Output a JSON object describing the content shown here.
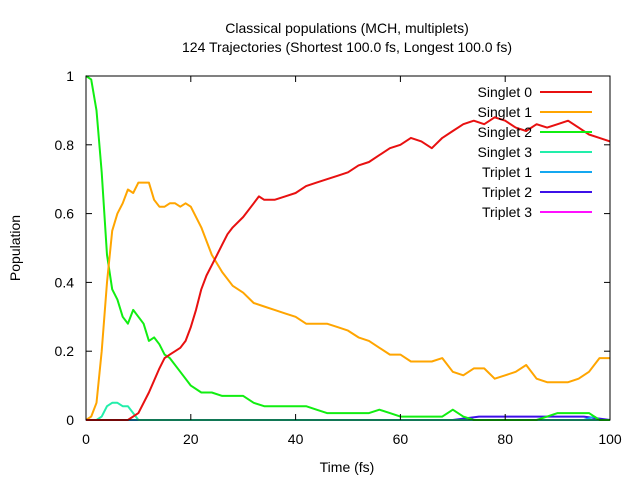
{
  "chart_data": {
    "type": "line",
    "title": "Classical populations (MCH, multiplets)",
    "subtitle": "124 Trajectories (Shortest 100.0 fs, Longest 100.0 fs)",
    "xlabel": "Time (fs)",
    "ylabel": "Population",
    "xlim": [
      0,
      100
    ],
    "ylim": [
      0,
      1
    ],
    "xticks": [
      "0",
      "20",
      "40",
      "60",
      "80",
      "100"
    ],
    "yticks": [
      "0",
      "0.2",
      "0.4",
      "0.6",
      "0.8",
      "1"
    ],
    "grid": false,
    "legend_position": "top-right",
    "series": [
      {
        "name": "Singlet 0",
        "color": "#e81010",
        "x": [
          0,
          5,
          8,
          10,
          12,
          14,
          15,
          16,
          17,
          18,
          19,
          20,
          21,
          22,
          23,
          24,
          25,
          26,
          27,
          28,
          30,
          32,
          33,
          34,
          36,
          38,
          40,
          42,
          44,
          46,
          48,
          50,
          52,
          54,
          56,
          58,
          60,
          62,
          64,
          66,
          68,
          70,
          72,
          74,
          76,
          78,
          80,
          82,
          84,
          86,
          88,
          90,
          92,
          94,
          96,
          98,
          100
        ],
        "values": [
          0,
          0,
          0,
          0.02,
          0.08,
          0.15,
          0.18,
          0.19,
          0.2,
          0.21,
          0.23,
          0.27,
          0.32,
          0.38,
          0.42,
          0.45,
          0.48,
          0.51,
          0.54,
          0.56,
          0.59,
          0.63,
          0.65,
          0.64,
          0.64,
          0.65,
          0.66,
          0.68,
          0.69,
          0.7,
          0.71,
          0.72,
          0.74,
          0.75,
          0.77,
          0.79,
          0.8,
          0.82,
          0.81,
          0.79,
          0.82,
          0.84,
          0.86,
          0.87,
          0.86,
          0.88,
          0.87,
          0.85,
          0.84,
          0.86,
          0.85,
          0.86,
          0.87,
          0.85,
          0.83,
          0.82,
          0.81
        ]
      },
      {
        "name": "Singlet 1",
        "color": "#ffa500",
        "x": [
          0,
          1,
          2,
          3,
          4,
          5,
          6,
          7,
          8,
          9,
          10,
          11,
          12,
          13,
          14,
          15,
          16,
          17,
          18,
          19,
          20,
          22,
          24,
          26,
          28,
          30,
          32,
          34,
          36,
          38,
          40,
          42,
          44,
          46,
          48,
          50,
          52,
          54,
          56,
          58,
          60,
          62,
          64,
          66,
          68,
          70,
          72,
          74,
          76,
          78,
          80,
          82,
          84,
          86,
          88,
          90,
          92,
          94,
          96,
          98,
          100
        ],
        "values": [
          0,
          0.01,
          0.05,
          0.2,
          0.4,
          0.55,
          0.6,
          0.63,
          0.67,
          0.66,
          0.69,
          0.69,
          0.69,
          0.64,
          0.62,
          0.62,
          0.63,
          0.63,
          0.62,
          0.63,
          0.62,
          0.56,
          0.48,
          0.43,
          0.39,
          0.37,
          0.34,
          0.33,
          0.32,
          0.31,
          0.3,
          0.28,
          0.28,
          0.28,
          0.27,
          0.26,
          0.24,
          0.23,
          0.21,
          0.19,
          0.19,
          0.17,
          0.17,
          0.17,
          0.18,
          0.14,
          0.13,
          0.15,
          0.15,
          0.12,
          0.13,
          0.14,
          0.16,
          0.12,
          0.11,
          0.11,
          0.11,
          0.12,
          0.14,
          0.18,
          0.18
        ]
      },
      {
        "name": "Singlet 2",
        "color": "#11ee11",
        "x": [
          0,
          1,
          2,
          3,
          4,
          5,
          6,
          7,
          8,
          9,
          10,
          11,
          12,
          13,
          14,
          15,
          16,
          18,
          20,
          22,
          24,
          26,
          28,
          30,
          32,
          34,
          36,
          38,
          40,
          42,
          44,
          46,
          48,
          50,
          52,
          54,
          56,
          58,
          60,
          62,
          64,
          66,
          68,
          70,
          72,
          74,
          76,
          78,
          80,
          82,
          84,
          86,
          88,
          90,
          92,
          94,
          96,
          98,
          100
        ],
        "values": [
          1,
          0.99,
          0.9,
          0.72,
          0.48,
          0.38,
          0.35,
          0.3,
          0.28,
          0.32,
          0.3,
          0.28,
          0.23,
          0.24,
          0.22,
          0.19,
          0.18,
          0.14,
          0.1,
          0.08,
          0.08,
          0.07,
          0.07,
          0.07,
          0.05,
          0.04,
          0.04,
          0.04,
          0.04,
          0.04,
          0.03,
          0.02,
          0.02,
          0.02,
          0.02,
          0.02,
          0.03,
          0.02,
          0.01,
          0.01,
          0.01,
          0.01,
          0.01,
          0.03,
          0.01,
          0.0,
          0.0,
          0.0,
          0.0,
          0.0,
          0.0,
          0.0,
          0.01,
          0.02,
          0.02,
          0.02,
          0.02,
          0.0,
          0.0
        ]
      },
      {
        "name": "Singlet 3",
        "color": "#22eeaa",
        "x": [
          0,
          2,
          3,
          4,
          5,
          6,
          7,
          8,
          9,
          10,
          11,
          12,
          14,
          20,
          30,
          40,
          50,
          60,
          70,
          80,
          90,
          100
        ],
        "values": [
          0,
          0,
          0.01,
          0.04,
          0.05,
          0.05,
          0.04,
          0.04,
          0.02,
          0.0,
          0.0,
          0.0,
          0.0,
          0.0,
          0.0,
          0.0,
          0.0,
          0.0,
          0.0,
          0.0,
          0.0,
          0.0
        ]
      },
      {
        "name": "Triplet 1",
        "color": "#14a8f0",
        "x": [
          0,
          20,
          40,
          60,
          80,
          95,
          97,
          98,
          100
        ],
        "values": [
          0,
          0,
          0,
          0,
          0,
          0,
          0.01,
          0,
          0
        ]
      },
      {
        "name": "Triplet 2",
        "color": "#3d10e8",
        "x": [
          0,
          20,
          40,
          60,
          70,
          75,
          80,
          85,
          90,
          95,
          100
        ],
        "values": [
          0,
          0,
          0,
          0,
          0,
          0.01,
          0.01,
          0.01,
          0.01,
          0.01,
          0
        ]
      },
      {
        "name": "Triplet 3",
        "color": "#ff10ff",
        "x": [
          0,
          20,
          40,
          60,
          80,
          100
        ],
        "values": [
          0,
          0,
          0,
          0,
          0,
          0
        ]
      }
    ]
  }
}
